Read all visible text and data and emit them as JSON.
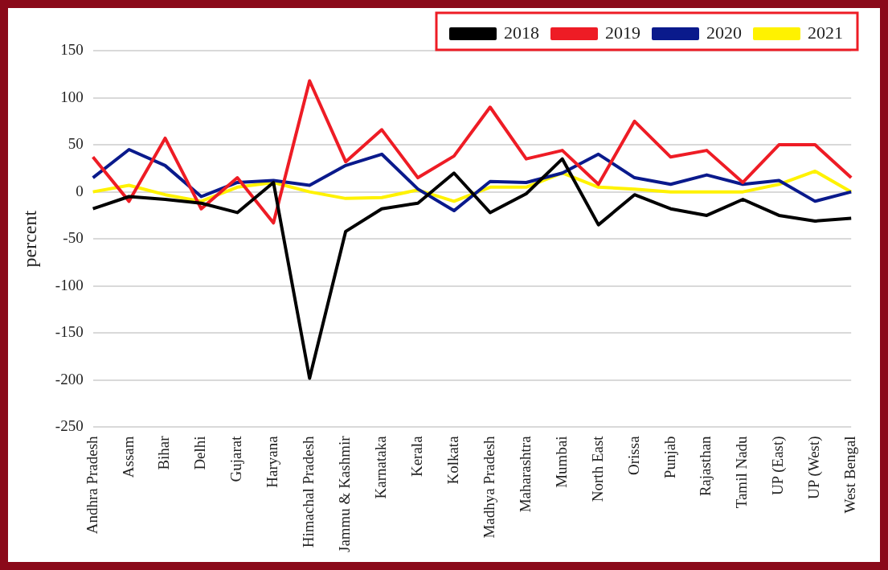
{
  "chart_data": {
    "type": "line",
    "ylabel": "percent",
    "categories": [
      "Andhra Pradesh",
      "Assam",
      "Bihar",
      "Delhi",
      "Gujarat",
      "Haryana",
      "Himachal Pradesh",
      "Jammu & Kashmir",
      "Karnataka",
      "Kerala",
      "Kolkata",
      "Madhya Pradesh",
      "Maharashtra",
      "Mumbai",
      "North East",
      "Orissa",
      "Punjab",
      "Rajasthan",
      "Tamil Nadu",
      "UP (East)",
      "UP (West)",
      "West Bengal"
    ],
    "series": [
      {
        "name": "2018",
        "color": "#000000",
        "values": [
          -18,
          -5,
          -8,
          -12,
          -22,
          10,
          -198,
          -42,
          -18,
          -12,
          20,
          -22,
          -2,
          35,
          -35,
          -3,
          -18,
          -25,
          -8,
          -25,
          -31,
          -28
        ]
      },
      {
        "name": "2019",
        "color": "#ee1c25",
        "values": [
          37,
          -10,
          57,
          -18,
          15,
          -33,
          118,
          32,
          66,
          15,
          38,
          90,
          35,
          44,
          8,
          75,
          37,
          44,
          10,
          50,
          50,
          15
        ]
      },
      {
        "name": "2020",
        "color": "#0a1a8c",
        "values": [
          15,
          45,
          28,
          -5,
          10,
          12,
          7,
          28,
          40,
          3,
          -20,
          11,
          10,
          20,
          40,
          15,
          8,
          18,
          8,
          12,
          -10,
          0
        ]
      },
      {
        "name": "2021",
        "color": "#fff200",
        "values": [
          0,
          7,
          -3,
          -10,
          5,
          10,
          0,
          -7,
          -6,
          2,
          -10,
          5,
          5,
          20,
          5,
          3,
          0,
          0,
          0,
          8,
          22,
          0
        ]
      }
    ],
    "ylim": [
      -250,
      150
    ],
    "yticks": [
      -250,
      -200,
      -150,
      -100,
      -50,
      0,
      50,
      100,
      150
    ],
    "grid": "y",
    "legend": "top right",
    "marker": "none",
    "line_style": "solid"
  }
}
